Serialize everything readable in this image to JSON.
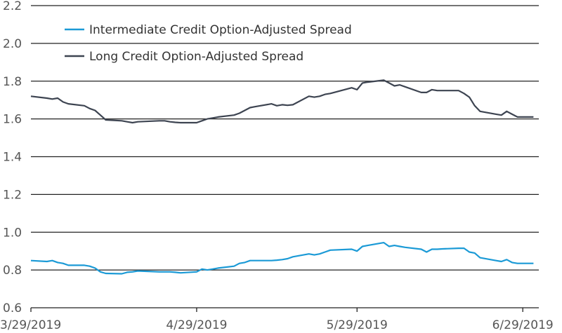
{
  "chart_data": {
    "type": "line",
    "title": "",
    "xlabel": "",
    "ylabel": "",
    "ylim": [
      0.6,
      2.2
    ],
    "yticks": [
      "2.2",
      "2.0",
      "1.8",
      "1.6",
      "1.4",
      "1.2",
      "1.0",
      "0.8",
      "0.6"
    ],
    "xticks": [
      "3/29/2019",
      "4/29/2019",
      "5/29/2019",
      "6/29/2019"
    ],
    "grid": "horizontal",
    "legend_position": "top-left",
    "series": [
      {
        "name": "Intermediate Credit Option-Adjusted Spread",
        "color": "#1b9ad6",
        "points": [
          [
            "2019-03-29",
            0.85
          ],
          [
            "2019-04-01",
            0.845
          ],
          [
            "2019-04-02",
            0.85
          ],
          [
            "2019-04-03",
            0.84
          ],
          [
            "2019-04-04",
            0.835
          ],
          [
            "2019-04-05",
            0.825
          ],
          [
            "2019-04-08",
            0.825
          ],
          [
            "2019-04-09",
            0.82
          ],
          [
            "2019-04-10",
            0.81
          ],
          [
            "2019-04-11",
            0.79
          ],
          [
            "2019-04-12",
            0.782
          ],
          [
            "2019-04-15",
            0.78
          ],
          [
            "2019-04-16",
            0.788
          ],
          [
            "2019-04-17",
            0.79
          ],
          [
            "2019-04-18",
            0.795
          ],
          [
            "2019-04-22",
            0.79
          ],
          [
            "2019-04-23",
            0.79
          ],
          [
            "2019-04-24",
            0.79
          ],
          [
            "2019-04-25",
            0.788
          ],
          [
            "2019-04-26",
            0.785
          ],
          [
            "2019-04-29",
            0.79
          ],
          [
            "2019-04-30",
            0.805
          ],
          [
            "2019-05-01",
            0.8
          ],
          [
            "2019-05-02",
            0.805
          ],
          [
            "2019-05-03",
            0.81
          ],
          [
            "2019-05-06",
            0.82
          ],
          [
            "2019-05-07",
            0.835
          ],
          [
            "2019-05-08",
            0.84
          ],
          [
            "2019-05-09",
            0.85
          ],
          [
            "2019-05-10",
            0.85
          ],
          [
            "2019-05-13",
            0.85
          ],
          [
            "2019-05-14",
            0.852
          ],
          [
            "2019-05-15",
            0.855
          ],
          [
            "2019-05-16",
            0.86
          ],
          [
            "2019-05-17",
            0.87
          ],
          [
            "2019-05-20",
            0.885
          ],
          [
            "2019-05-21",
            0.88
          ],
          [
            "2019-05-22",
            0.885
          ],
          [
            "2019-05-23",
            0.895
          ],
          [
            "2019-05-24",
            0.905
          ],
          [
            "2019-05-28",
            0.91
          ],
          [
            "2019-05-29",
            0.9
          ],
          [
            "2019-05-30",
            0.925
          ],
          [
            "2019-05-31",
            0.93
          ],
          [
            "2019-06-03",
            0.945
          ],
          [
            "2019-06-04",
            0.925
          ],
          [
            "2019-06-05",
            0.93
          ],
          [
            "2019-06-06",
            0.925
          ],
          [
            "2019-06-07",
            0.92
          ],
          [
            "2019-06-10",
            0.91
          ],
          [
            "2019-06-11",
            0.895
          ],
          [
            "2019-06-12",
            0.91
          ],
          [
            "2019-06-13",
            0.91
          ],
          [
            "2019-06-14",
            0.912
          ],
          [
            "2019-06-17",
            0.915
          ],
          [
            "2019-06-18",
            0.915
          ],
          [
            "2019-06-19",
            0.895
          ],
          [
            "2019-06-20",
            0.89
          ],
          [
            "2019-06-21",
            0.865
          ],
          [
            "2019-06-24",
            0.85
          ],
          [
            "2019-06-25",
            0.845
          ],
          [
            "2019-06-26",
            0.855
          ],
          [
            "2019-06-27",
            0.84
          ],
          [
            "2019-06-28",
            0.835
          ],
          [
            "2019-07-01",
            0.835
          ]
        ]
      },
      {
        "name": "Long Credit Option-Adjusted Spread",
        "color": "#3d4451",
        "points": [
          [
            "2019-03-29",
            1.72
          ],
          [
            "2019-04-01",
            1.71
          ],
          [
            "2019-04-02",
            1.705
          ],
          [
            "2019-04-03",
            1.71
          ],
          [
            "2019-04-04",
            1.69
          ],
          [
            "2019-04-05",
            1.68
          ],
          [
            "2019-04-08",
            1.67
          ],
          [
            "2019-04-09",
            1.655
          ],
          [
            "2019-04-10",
            1.645
          ],
          [
            "2019-04-11",
            1.62
          ],
          [
            "2019-04-12",
            1.595
          ],
          [
            "2019-04-15",
            1.59
          ],
          [
            "2019-04-16",
            1.585
          ],
          [
            "2019-04-17",
            1.58
          ],
          [
            "2019-04-18",
            1.585
          ],
          [
            "2019-04-22",
            1.59
          ],
          [
            "2019-04-23",
            1.59
          ],
          [
            "2019-04-24",
            1.585
          ],
          [
            "2019-04-25",
            1.582
          ],
          [
            "2019-04-26",
            1.58
          ],
          [
            "2019-04-29",
            1.58
          ],
          [
            "2019-04-30",
            1.59
          ],
          [
            "2019-05-01",
            1.6
          ],
          [
            "2019-05-02",
            1.605
          ],
          [
            "2019-05-03",
            1.61
          ],
          [
            "2019-05-06",
            1.62
          ],
          [
            "2019-05-07",
            1.63
          ],
          [
            "2019-05-08",
            1.645
          ],
          [
            "2019-05-09",
            1.66
          ],
          [
            "2019-05-10",
            1.665
          ],
          [
            "2019-05-13",
            1.68
          ],
          [
            "2019-05-14",
            1.67
          ],
          [
            "2019-05-15",
            1.675
          ],
          [
            "2019-05-16",
            1.672
          ],
          [
            "2019-05-17",
            1.675
          ],
          [
            "2019-05-20",
            1.72
          ],
          [
            "2019-05-21",
            1.715
          ],
          [
            "2019-05-22",
            1.72
          ],
          [
            "2019-05-23",
            1.73
          ],
          [
            "2019-05-24",
            1.735
          ],
          [
            "2019-05-28",
            1.765
          ],
          [
            "2019-05-29",
            1.755
          ],
          [
            "2019-05-30",
            1.79
          ],
          [
            "2019-05-31",
            1.795
          ],
          [
            "2019-06-03",
            1.805
          ],
          [
            "2019-06-04",
            1.79
          ],
          [
            "2019-06-05",
            1.775
          ],
          [
            "2019-06-06",
            1.78
          ],
          [
            "2019-06-07",
            1.77
          ],
          [
            "2019-06-10",
            1.74
          ],
          [
            "2019-06-11",
            1.74
          ],
          [
            "2019-06-12",
            1.755
          ],
          [
            "2019-06-13",
            1.75
          ],
          [
            "2019-06-14",
            1.75
          ],
          [
            "2019-06-17",
            1.75
          ],
          [
            "2019-06-18",
            1.735
          ],
          [
            "2019-06-19",
            1.715
          ],
          [
            "2019-06-20",
            1.67
          ],
          [
            "2019-06-21",
            1.64
          ],
          [
            "2019-06-24",
            1.625
          ],
          [
            "2019-06-25",
            1.62
          ],
          [
            "2019-06-26",
            1.64
          ],
          [
            "2019-06-27",
            1.625
          ],
          [
            "2019-06-28",
            1.61
          ],
          [
            "2019-07-01",
            1.61
          ]
        ]
      }
    ]
  }
}
